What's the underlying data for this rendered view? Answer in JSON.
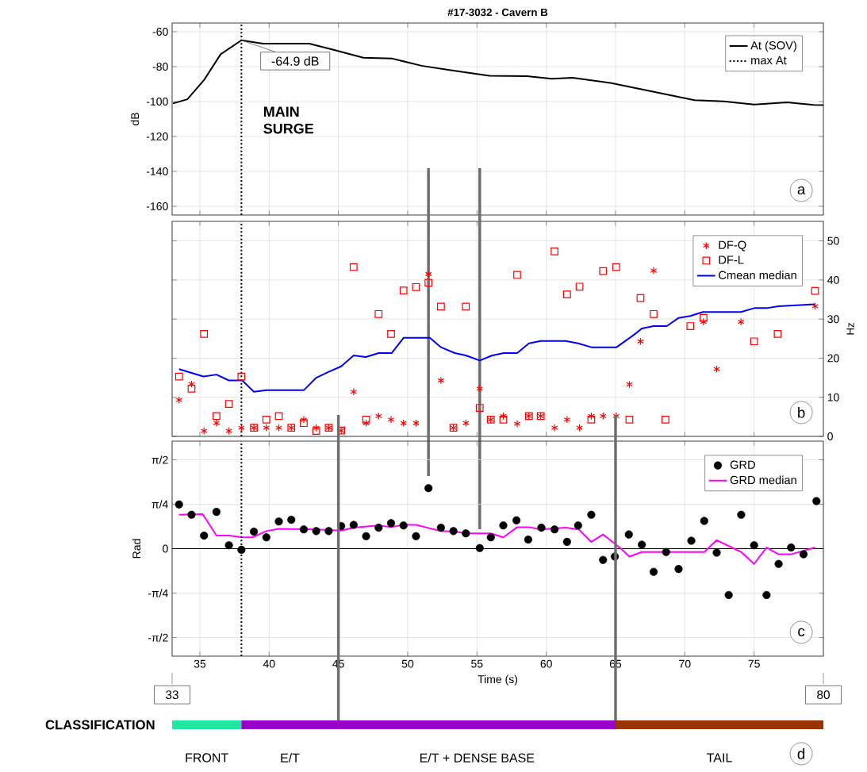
{
  "chart_data": [
    {
      "type": "line",
      "title": "#17-3032 - Cavern B",
      "ylabel": "dB",
      "xlim": [
        33,
        80
      ],
      "ylim": [
        -165,
        -55
      ],
      "xticks": [
        35,
        40,
        45,
        50,
        55,
        60,
        65,
        70,
        75
      ],
      "yticks": [
        -160,
        -140,
        -120,
        -100,
        -80,
        -60
      ],
      "grid": true,
      "legend": "top right",
      "tick_labels": "y",
      "series": [
        {
          "name": "At (SOV)",
          "color": "#000000",
          "x": [
            33.06,
            34.1,
            35.3,
            36.5,
            38.0,
            39.55,
            42.9,
            44.7,
            46.8,
            48.9,
            51.0,
            53.2,
            55.9,
            58.6,
            60.4,
            61.9,
            64.7,
            67.7,
            70.7,
            72.8,
            75.0,
            77.4,
            79.3,
            80
          ],
          "values": [
            -101.1,
            -98.7,
            -87.7,
            -72.9,
            -64.9,
            -66.8,
            -66.8,
            -70.5,
            -74.9,
            -75.4,
            -79.5,
            -82.2,
            -85.2,
            -85.5,
            -86.9,
            -86.4,
            -89.4,
            -94.3,
            -99.2,
            -99.9,
            -101.7,
            -100.5,
            -101.9,
            -102
          ]
        },
        {
          "name": "max At",
          "color": "#000000",
          "line_style": "dotted",
          "x": [
            38,
            38
          ],
          "values": [
            -165,
            -55
          ]
        }
      ],
      "annotations": [
        {
          "text": "-64.9 dB",
          "x": 38,
          "y": -64.9
        },
        "MAIN SURGE",
        "a"
      ]
    },
    {
      "type": "scatter",
      "xlim": [
        33,
        80
      ],
      "xticks": [
        35,
        40,
        45,
        50,
        55,
        60,
        65,
        70,
        75
      ],
      "ylabel": "Hz",
      "ylim": [
        0,
        55
      ],
      "yticks": [
        0,
        10,
        20,
        30,
        40,
        50
      ],
      "grid": true,
      "legend": "top right",
      "tick_labels": "y",
      "series": [
        {
          "name": "DF-Q",
          "color": "#ff0000",
          "marker": "cross",
          "x": [
            33.5,
            34.4,
            35.3,
            36.2,
            37.1,
            38.0,
            38.9,
            39.8,
            40.7,
            41.6,
            42.5,
            43.4,
            44.3,
            45.2,
            46.1,
            47.0,
            47.9,
            48.8,
            49.7,
            50.6,
            51.5,
            52.4,
            53.3,
            54.2,
            55.2,
            56.0,
            56.9,
            57.9,
            58.75,
            59.6,
            60.6,
            61.5,
            62.4,
            63.25,
            64.1,
            65.05,
            66.0,
            66.8,
            67.75,
            71.35,
            72.3,
            74.05,
            79.4
          ],
          "values": [
            9.3,
            13.4,
            1.4,
            3.4,
            1.4,
            2.2,
            2.2,
            2.2,
            2.2,
            2.2,
            4.3,
            2.2,
            2.2,
            1.5,
            11.4,
            3.4,
            5.2,
            4.3,
            3.4,
            3.4,
            41.5,
            14.3,
            2.2,
            3.4,
            12.2,
            4.3,
            5.2,
            3.2,
            5.2,
            5.2,
            2.2,
            4.3,
            2.2,
            5.2,
            5.2,
            5.2,
            13.3,
            24.3,
            42.4,
            29.3,
            17.2,
            29.3,
            33.3
          ]
        },
        {
          "name": "DF-L",
          "color": "#ff0000",
          "marker": "square",
          "x": [
            33.5,
            34.4,
            35.3,
            36.2,
            37.1,
            38.0,
            38.9,
            39.8,
            40.7,
            41.6,
            42.5,
            43.4,
            44.3,
            45.2,
            46.1,
            47.0,
            47.9,
            48.8,
            49.7,
            50.6,
            51.5,
            52.4,
            53.3,
            54.2,
            55.2,
            56.0,
            56.9,
            57.9,
            58.75,
            59.6,
            60.6,
            61.5,
            62.4,
            63.25,
            64.1,
            65.05,
            66.0,
            66.8,
            67.75,
            68.6,
            70.4,
            71.35,
            75.0,
            76.7,
            79.4
          ],
          "values": [
            15.3,
            12.2,
            26.2,
            5.2,
            8.3,
            15.3,
            2.2,
            4.3,
            5.2,
            2.2,
            3.4,
            1.4,
            2.2,
            1.5,
            43.3,
            4.3,
            31.3,
            26.2,
            37.3,
            38.2,
            39.3,
            33.2,
            2.2,
            33.2,
            7.3,
            4.3,
            4.3,
            41.3,
            5.2,
            5.2,
            47.3,
            36.3,
            38.3,
            4.3,
            42.3,
            43.3,
            4.3,
            35.4,
            31.3,
            4.3,
            28.2,
            30.3,
            24.3,
            26.2,
            37.2
          ]
        },
        {
          "name": "Cmean median",
          "type": "line",
          "color": "#0000ff",
          "x": [
            33.5,
            35.28,
            36.2,
            37.1,
            38.06,
            38.9,
            39.8,
            42.5,
            43.4,
            44.3,
            45.2,
            46.1,
            46.97,
            47.9,
            48.84,
            49.7,
            51.6,
            52.4,
            53.4,
            54.2,
            55.2,
            56.1,
            56.93,
            57.9,
            58.75,
            59.6,
            61.4,
            62.3,
            63.25,
            65.07,
            66.3,
            66.9,
            67.75,
            68.7,
            69.55,
            70.4,
            71.3,
            74.05,
            75.0,
            75.9,
            76.75,
            77.8,
            79.4
          ],
          "values": [
            17.2,
            15.3,
            15.8,
            14.3,
            14.3,
            11.4,
            11.8,
            11.8,
            15.0,
            16.5,
            17.9,
            20.7,
            20.3,
            21.3,
            21.3,
            25.2,
            25.2,
            22.8,
            21.3,
            20.7,
            19.4,
            20.7,
            21.3,
            21.3,
            23.8,
            24.4,
            24.4,
            23.8,
            22.8,
            22.8,
            25.9,
            27.6,
            28.2,
            28.2,
            30.3,
            30.8,
            31.8,
            31.8,
            32.8,
            32.8,
            33.3,
            33.5,
            33.8
          ]
        },
        {
          "type": "line",
          "color": "#000000",
          "line_style": "dotted",
          "x": [
            38,
            38
          ],
          "values": [
            0,
            55
          ]
        }
      ],
      "ref_lines": [
        {
          "axis": "x",
          "value": 51.5,
          "color": "#6e6e6e"
        },
        {
          "axis": "x",
          "value": 55.2,
          "color": "#6e6e6e"
        }
      ],
      "annotations": [
        "b"
      ]
    },
    {
      "type": "scatter",
      "xlabel": "Time (s)",
      "ylabel": "Rad",
      "xlim": [
        33,
        80
      ],
      "ylim": [
        -1.9,
        1.9
      ],
      "xticks": [
        35,
        40,
        45,
        50,
        55,
        60,
        65,
        70,
        75
      ],
      "yticks": [
        {
          "value": -1.5708,
          "label": "-π/2"
        },
        {
          "value": -0.7854,
          "label": "-π/4"
        },
        0,
        {
          "value": 0.7854,
          "label": "π/4"
        },
        {
          "value": 1.5708,
          "label": "π/2"
        }
      ],
      "grid": true,
      "legend": "top right",
      "series": [
        {
          "name": "GRD",
          "color": "#000000",
          "marker": "circle",
          "x": [
            33.5,
            34.4,
            35.3,
            36.2,
            37.1,
            38.0,
            38.9,
            39.8,
            40.7,
            41.6,
            42.5,
            43.4,
            44.3,
            45.2,
            46.1,
            47.0,
            47.9,
            48.8,
            49.7,
            50.6,
            51.5,
            52.4,
            53.3,
            54.2,
            55.2,
            56.0,
            56.9,
            57.85,
            58.7,
            59.65,
            60.6,
            61.5,
            62.3,
            63.25,
            64.1,
            64.95,
            65.96,
            66.9,
            67.75,
            68.65,
            69.55,
            70.47,
            71.4,
            72.3,
            73.17,
            74.07,
            75.0,
            75.9,
            76.77,
            77.67,
            78.57,
            79.5
          ],
          "values": [
            0.78,
            0.6,
            0.23,
            0.65,
            0.06,
            -0.02,
            0.3,
            0.2,
            0.48,
            0.51,
            0.34,
            0.31,
            0.31,
            0.4,
            0.42,
            0.22,
            0.37,
            0.45,
            0.41,
            0.22,
            1.07,
            0.37,
            0.31,
            0.27,
            0.01,
            0.2,
            0.41,
            0.5,
            0.16,
            0.37,
            0.34,
            0.12,
            0.41,
            0.6,
            -0.2,
            -0.14,
            0.25,
            0.07,
            -0.41,
            -0.06,
            -0.36,
            0.14,
            0.49,
            -0.07,
            -0.82,
            0.6,
            0.06,
            -0.82,
            -0.27,
            0.02,
            -0.1,
            0.84
          ]
        },
        {
          "name": "GRD median",
          "type": "line",
          "color": "#ff00ff",
          "x": [
            33.5,
            35.2,
            36.2,
            37.1,
            38.1,
            38.8,
            39.8,
            40.7,
            43.4,
            45.2,
            46.1,
            47.9,
            48.8,
            49.7,
            50.6,
            52.4,
            53.4,
            54.2,
            55.2,
            56.0,
            56.9,
            57.9,
            58.75,
            59.6,
            61.4,
            62.35,
            63.25,
            64.1,
            65.4,
            66.0,
            66.9,
            71.4,
            72.3,
            74.07,
            75.0,
            75.9,
            76.77,
            77.67,
            79.4
          ],
          "values": [
            0.6,
            0.61,
            0.23,
            0.23,
            0.2,
            0.2,
            0.31,
            0.35,
            0.34,
            0.32,
            0.37,
            0.41,
            0.38,
            0.42,
            0.42,
            0.31,
            0.3,
            0.27,
            0.27,
            0.27,
            0.2,
            0.38,
            0.38,
            0.34,
            0.37,
            0.34,
            0.12,
            0.25,
            0.0,
            -0.14,
            -0.06,
            -0.06,
            0.15,
            -0.06,
            -0.27,
            0.02,
            -0.1,
            -0.1,
            0.02
          ]
        },
        {
          "type": "line",
          "color": "#000000",
          "line_style": "dotted",
          "x": [
            38,
            38
          ],
          "values": [
            -1.9,
            1.9
          ]
        }
      ],
      "ref_lines": [
        {
          "axis": "y",
          "value": 0,
          "color": "#000000"
        }
      ],
      "annotations": [
        "c"
      ]
    },
    {
      "type": "bar",
      "orientation": "horizontal",
      "categories": [
        "CLASSIFICATION"
      ],
      "xlim": [
        33,
        80
      ],
      "xticks": [
        33,
        80
      ],
      "series": [
        {
          "name": "FRONT",
          "color": "#20e8a0",
          "base": [
            33
          ],
          "values": [
            5
          ]
        },
        {
          "name": "E/T",
          "color": "#9900cc",
          "base": [
            38
          ],
          "values": [
            7
          ]
        },
        {
          "name": "E/T + DENSE BASE",
          "color": "#9900cc",
          "base": [
            45
          ],
          "values": [
            20
          ]
        },
        {
          "name": "TAIL",
          "color": "#993300",
          "base": [
            65
          ],
          "values": [
            15
          ]
        }
      ],
      "ref_lines": [
        {
          "axis": "x",
          "value": 45,
          "color": "#6e6e6e"
        },
        {
          "axis": "x",
          "value": 65,
          "color": "#6e6e6e"
        }
      ],
      "annotations": [
        "d"
      ]
    }
  ]
}
